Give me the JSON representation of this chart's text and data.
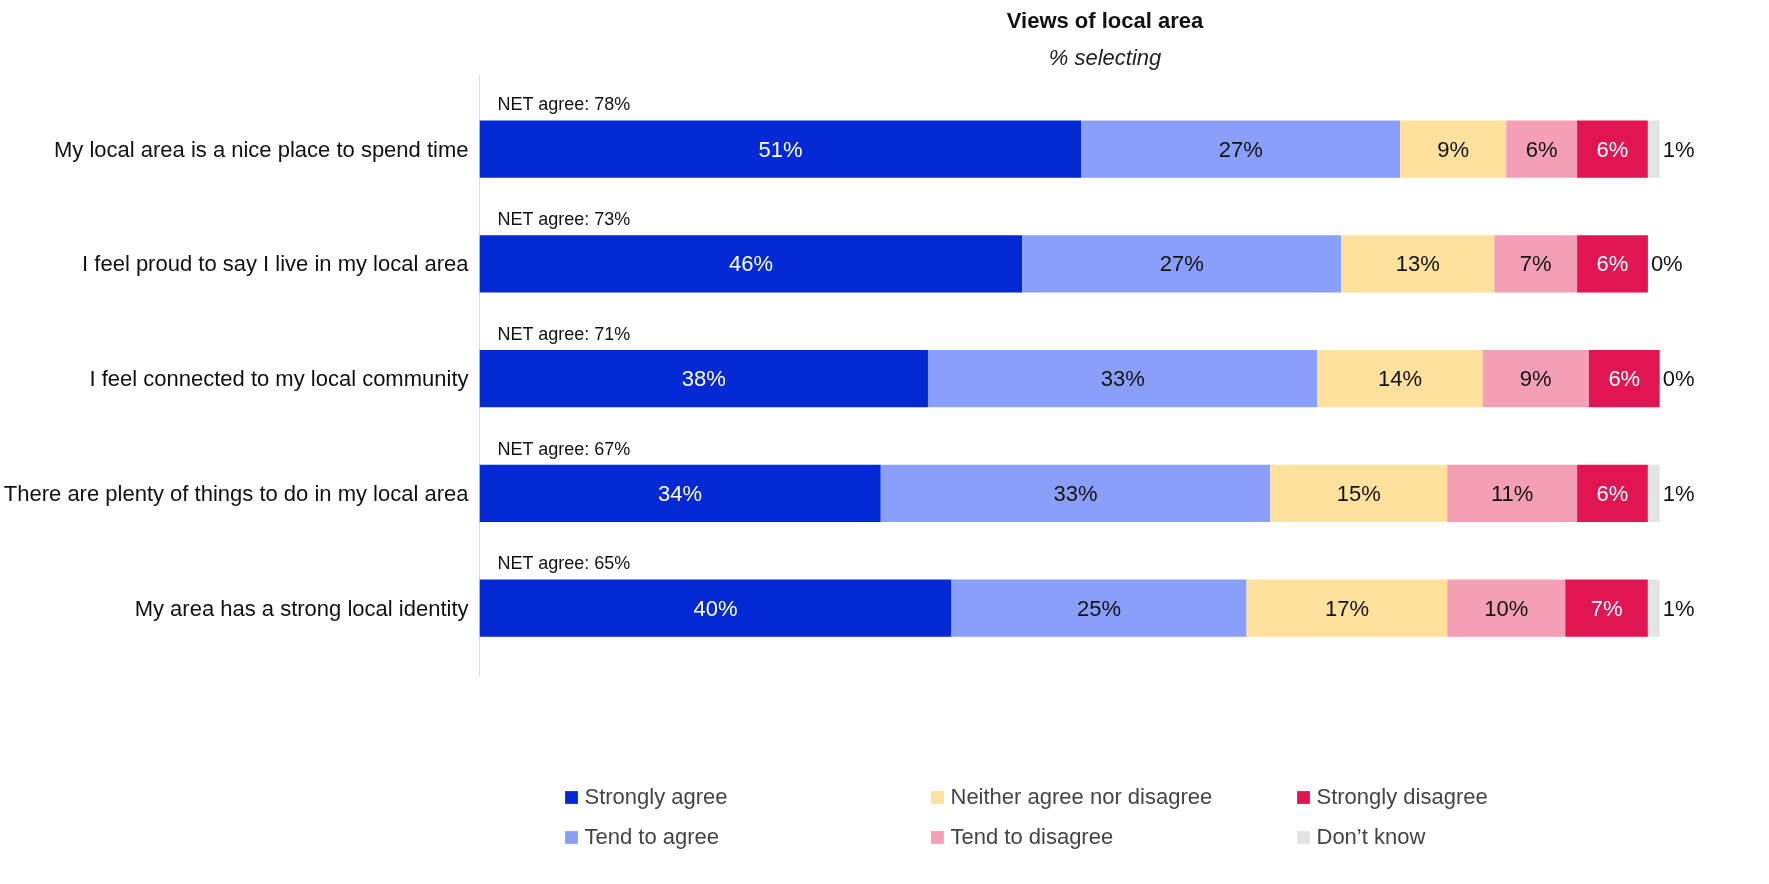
{
  "chart_data": {
    "type": "bar",
    "orientation": "horizontal",
    "stacked": true,
    "title": "Views of local area",
    "subtitle": "% selecting",
    "categories": [
      "My local area is a nice place to spend time",
      "I feel proud to say I live in my local area",
      "I feel connected to my local community",
      "There are plenty of things to do in my local area",
      "My area has a strong local identity"
    ],
    "series": [
      {
        "name": "Strongly agree",
        "color": "#0329d4",
        "values": [
          51,
          46,
          38,
          34,
          40
        ],
        "value_labels": [
          "51%",
          "46%",
          "38%",
          "34%",
          "40%"
        ]
      },
      {
        "name": "Tend to agree",
        "color": "#8a9ffa",
        "values": [
          27,
          27,
          33,
          33,
          25
        ],
        "value_labels": [
          "27%",
          "27%",
          "33%",
          "33%",
          "25%"
        ]
      },
      {
        "name": "Neither agree nor disagree",
        "color": "#fde19c",
        "values": [
          9,
          13,
          14,
          15,
          17
        ],
        "value_labels": [
          "9%",
          "13%",
          "14%",
          "15%",
          "17%"
        ]
      },
      {
        "name": "Tend to disagree",
        "color": "#f49fb5",
        "values": [
          6,
          7,
          9,
          11,
          10
        ],
        "value_labels": [
          "6%",
          "7%",
          "9%",
          "11%",
          "10%"
        ]
      },
      {
        "name": "Strongly disagree",
        "color": "#e11551",
        "values": [
          6,
          6,
          6,
          6,
          7
        ],
        "value_labels": [
          "6%",
          "6%",
          "6%",
          "6%",
          "7%"
        ]
      },
      {
        "name": "Don’t know",
        "color": "#e4e4e4",
        "values": [
          1,
          0,
          0,
          1,
          1
        ],
        "value_labels": [
          "1%",
          "0%",
          "0%",
          "1%",
          "1%"
        ]
      }
    ],
    "annotations": [
      "NET agree: 78%",
      "NET agree: 73%",
      "NET agree: 71%",
      "NET agree: 67%",
      "NET agree: 65%"
    ],
    "legend": "bottom"
  }
}
